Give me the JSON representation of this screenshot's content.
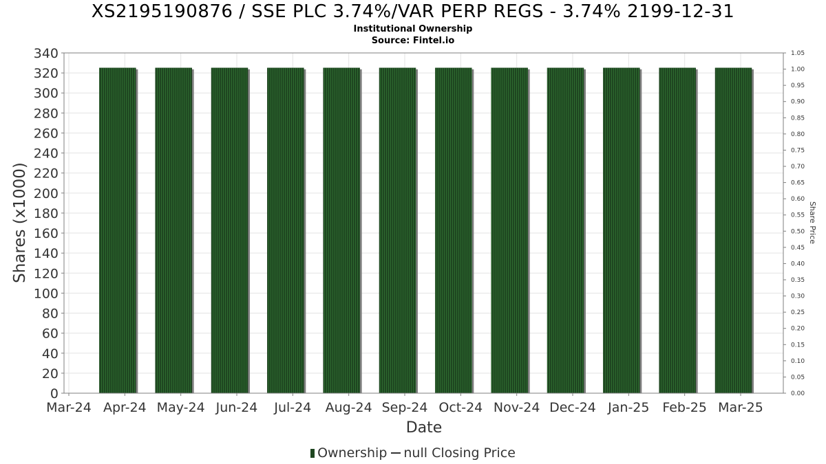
{
  "title": "XS2195190876 / SSE PLC 3.74%/VAR PERP REGS - 3.74% 2199-12-31",
  "subtitle": "Institutional Ownership",
  "source": "Source: Fintel.io",
  "legend": {
    "ownership": "Ownership",
    "price": "null Closing Price"
  },
  "colors": {
    "bar": "#1e4620",
    "bar_stripe": "#2e6b30",
    "bar_shadow": "#7f7f7f",
    "grid": "#e3e3e3",
    "axis": "#7f7f7f"
  },
  "chart_data": {
    "type": "bar",
    "xlabel": "Date",
    "ylabel": "Shares (x1000)",
    "y2label": "Share Price",
    "ylim": [
      0,
      340
    ],
    "y2lim": [
      0,
      1.05
    ],
    "yticks": [
      "0",
      "20",
      "40",
      "60",
      "80",
      "100",
      "120",
      "140",
      "160",
      "180",
      "200",
      "220",
      "240",
      "260",
      "280",
      "300",
      "320",
      "340"
    ],
    "y2ticks": [
      "0.00",
      "0.05",
      "0.10",
      "0.15",
      "0.20",
      "0.25",
      "0.30",
      "0.35",
      "0.40",
      "0.45",
      "0.50",
      "0.55",
      "0.60",
      "0.65",
      "0.70",
      "0.75",
      "0.80",
      "0.85",
      "0.90",
      "0.95",
      "1.00",
      "1.05"
    ],
    "categories": [
      "Mar-24",
      "Apr-24",
      "May-24",
      "Jun-24",
      "Jul-24",
      "Aug-24",
      "Sep-24",
      "Oct-24",
      "Nov-24",
      "Dec-24",
      "Jan-25",
      "Feb-25",
      "Mar-25"
    ],
    "series": [
      {
        "name": "Ownership",
        "values": [
          0,
          325,
          325,
          325,
          325,
          325,
          325,
          325,
          325,
          325,
          325,
          325,
          325
        ]
      }
    ],
    "grid": true,
    "legend_position": "bottom"
  }
}
